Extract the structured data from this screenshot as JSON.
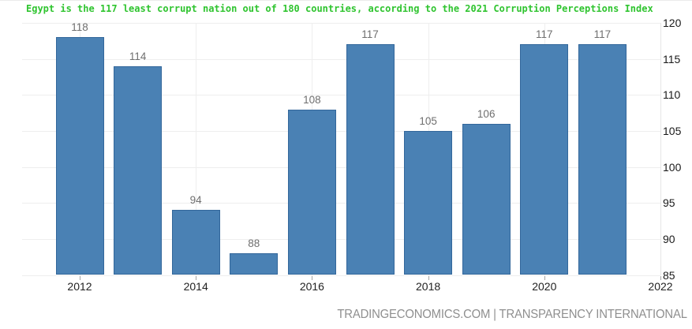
{
  "chart_data": {
    "type": "bar",
    "title": "Egypt is the 117 least corrupt nation out of 180 countries, according to the 2021 Corruption Perceptions Index",
    "categories": [
      "2012",
      "2013",
      "2014",
      "2015",
      "2016",
      "2017",
      "2018",
      "2019",
      "2020",
      "2021"
    ],
    "values": [
      118,
      114,
      94,
      88,
      108,
      117,
      105,
      106,
      117,
      117
    ],
    "x_tick_labels": [
      "2012",
      "2014",
      "2016",
      "2018",
      "2020",
      "2022"
    ],
    "x_tick_years": [
      2012,
      2014,
      2016,
      2018,
      2020,
      2022
    ],
    "y_tick_labels": [
      120,
      115,
      110,
      105,
      100,
      95,
      90,
      85
    ],
    "ylim": [
      85,
      120
    ],
    "grid": true,
    "legend": "none",
    "ylabel": "",
    "xlabel": "",
    "bar_color": "#4a81b4",
    "bar_border_color": "#33679b",
    "title_color": "#2fc42f",
    "value_label_color": "#6f6f6f"
  },
  "footer": {
    "source": "TRADINGECONOMICS.COM | TRANSPARENCY INTERNATIONAL"
  }
}
